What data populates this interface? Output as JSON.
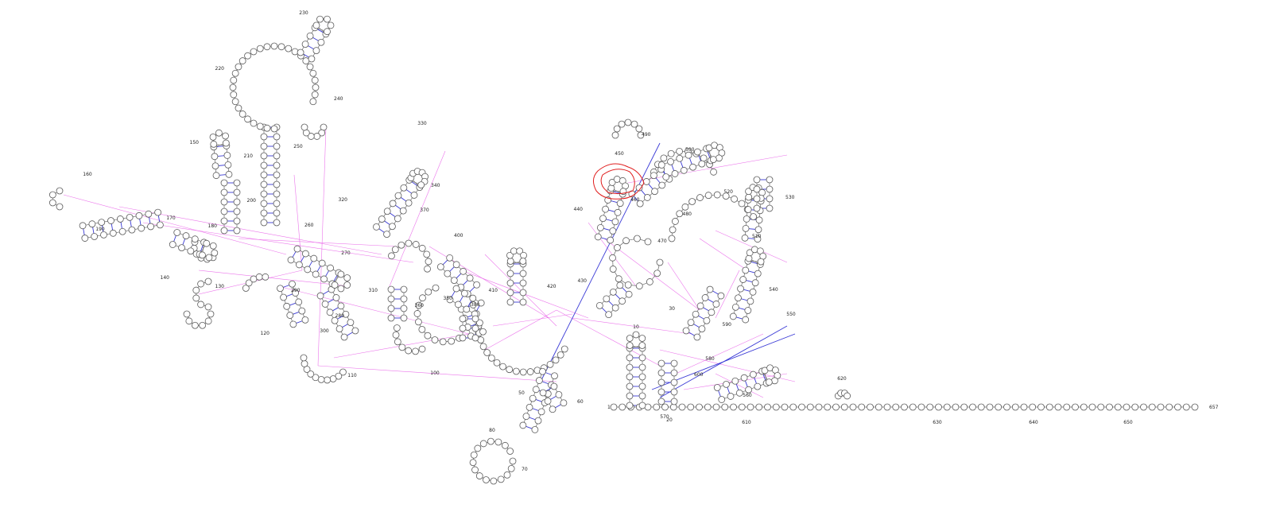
{
  "colors": {
    "canonical_pair": "#3a3ad6",
    "noncanonical_interaction": "#e85ee8",
    "backbone": "#6a6a6a",
    "nucleotide_outline": "#5a5a5a",
    "highlight": "#e02020"
  },
  "position_labels": [
    "1",
    "10",
    "20",
    "30",
    "50",
    "60",
    "70",
    "80",
    "100",
    "110",
    "120",
    "130",
    "140",
    "150",
    "160",
    "170",
    "180",
    "190",
    "200",
    "210",
    "220",
    "230",
    "240",
    "250",
    "260",
    "270",
    "280",
    "290",
    "300",
    "310",
    "320",
    "330",
    "340",
    "350",
    "360",
    "370",
    "380",
    "400",
    "410",
    "420",
    "430",
    "440",
    "450",
    "460",
    "470",
    "480",
    "490",
    "500",
    "510",
    "520",
    "530",
    "540",
    "550",
    "560",
    "570",
    "580",
    "590",
    "600",
    "610",
    "620",
    "630",
    "640",
    "650",
    "657"
  ]
}
